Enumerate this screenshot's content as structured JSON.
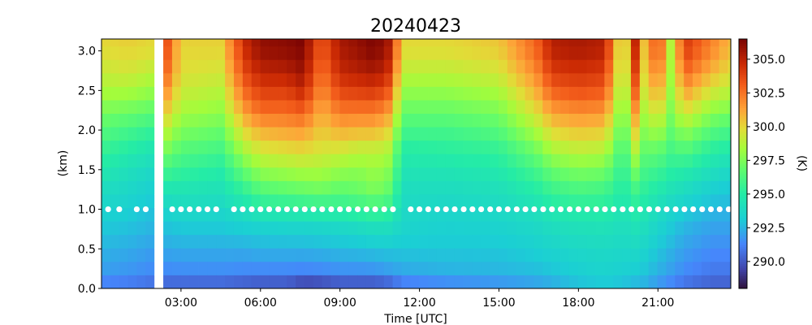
{
  "chart_data": {
    "type": "heatmap",
    "title": "20240423",
    "xlabel": "Time [UTC]",
    "ylabel": "(km)",
    "colorbar_label": "(K)",
    "colormap": "turbo",
    "xlim_hours": [
      0.0,
      23.75
    ],
    "ylim_km": [
      0.0,
      3.15
    ],
    "x_tick_labels": [
      "03:00",
      "06:00",
      "09:00",
      "12:00",
      "15:00",
      "18:00",
      "21:00"
    ],
    "x_tick_hours": [
      3,
      6,
      9,
      12,
      15,
      18,
      21
    ],
    "y_ticks": [
      0.0,
      0.5,
      1.0,
      1.5,
      2.0,
      2.5,
      3.0
    ],
    "y_tick_labels": [
      "0.0",
      "0.5",
      "1.0",
      "1.5",
      "2.0",
      "2.5",
      "3.0"
    ],
    "clim_K": [
      288.0,
      306.5
    ],
    "cbar_ticks": [
      290.0,
      292.5,
      295.0,
      297.5,
      300.0,
      302.5,
      305.0
    ],
    "cbar_tick_labels": [
      "290.0",
      "292.5",
      "295.0",
      "297.5",
      "300.0",
      "302.5",
      "305.0"
    ],
    "profile_heights_km": [
      0.0,
      0.1,
      0.25,
      0.5,
      0.75,
      1.0,
      1.25,
      1.5,
      1.75,
      2.0,
      2.25,
      2.5,
      2.75,
      3.0,
      3.15
    ],
    "time_step_hours": 0.333,
    "missing_data_hours": [
      2.0,
      2.33
    ],
    "profiles": [
      {
        "t": 0.0,
        "K": [
          290.5,
          291.5,
          292.0,
          292.5,
          293.0,
          293.5,
          294.0,
          294.8,
          295.6,
          296.5,
          297.5,
          298.5,
          299.2,
          299.8,
          300.0
        ]
      },
      {
        "t": 1.0,
        "K": [
          290.3,
          291.3,
          291.8,
          292.3,
          292.8,
          293.3,
          293.7,
          294.2,
          295.0,
          296.0,
          297.2,
          298.5,
          299.5,
          300.0,
          300.3
        ]
      },
      {
        "t": 1.9,
        "K": [
          290.0,
          291.0,
          291.5,
          292.0,
          292.5,
          292.9,
          293.3,
          293.8,
          294.5,
          295.5,
          296.8,
          298.0,
          299.0,
          299.8,
          300.0
        ]
      },
      {
        "t": 2.4,
        "K": [
          289.5,
          290.8,
          291.5,
          292.2,
          292.8,
          293.5,
          294.5,
          296.0,
          297.5,
          299.0,
          300.5,
          302.0,
          303.2,
          303.8,
          304.0
        ]
      },
      {
        "t": 3.0,
        "K": [
          289.5,
          290.8,
          291.6,
          292.3,
          293.0,
          293.8,
          294.5,
          295.5,
          296.5,
          297.5,
          298.5,
          299.2,
          299.8,
          300.0,
          300.2
        ]
      },
      {
        "t": 4.5,
        "K": [
          289.5,
          290.8,
          291.6,
          292.3,
          293.0,
          293.7,
          294.3,
          295.0,
          296.0,
          297.0,
          298.0,
          298.8,
          299.5,
          300.0,
          300.2
        ]
      },
      {
        "t": 5.4,
        "K": [
          289.3,
          290.6,
          291.5,
          292.3,
          293.2,
          294.2,
          295.5,
          297.0,
          298.5,
          300.0,
          301.5,
          302.8,
          303.8,
          304.5,
          304.8
        ]
      },
      {
        "t": 6.0,
        "K": [
          289.0,
          290.5,
          291.5,
          292.5,
          293.3,
          294.8,
          296.5,
          298.0,
          299.5,
          301.0,
          302.8,
          304.0,
          305.0,
          305.8,
          306.0
        ]
      },
      {
        "t": 7.0,
        "K": [
          289.0,
          290.5,
          291.5,
          292.5,
          293.4,
          294.9,
          296.8,
          298.3,
          299.8,
          301.3,
          302.8,
          304.0,
          305.2,
          306.0,
          306.2
        ]
      },
      {
        "t": 7.6,
        "K": [
          288.5,
          290.0,
          291.4,
          292.5,
          293.4,
          295.0,
          297.0,
          298.5,
          300.0,
          301.5,
          303.2,
          304.8,
          305.8,
          306.3,
          306.5
        ]
      },
      {
        "t": 8.3,
        "K": [
          288.5,
          290.2,
          291.5,
          292.6,
          293.5,
          295.2,
          297.2,
          298.5,
          299.5,
          300.3,
          301.0,
          301.8,
          302.5,
          303.0,
          303.2
        ]
      },
      {
        "t": 9.0,
        "K": [
          289.0,
          290.5,
          291.7,
          292.7,
          293.6,
          295.2,
          296.8,
          298.0,
          299.5,
          301.0,
          302.5,
          303.8,
          304.8,
          305.3,
          305.5
        ]
      },
      {
        "t": 9.7,
        "K": [
          289.0,
          290.5,
          291.7,
          292.8,
          293.8,
          295.5,
          297.0,
          297.8,
          299.0,
          300.8,
          302.5,
          304.0,
          305.2,
          305.8,
          306.0
        ]
      },
      {
        "t": 10.3,
        "K": [
          289.0,
          290.5,
          291.8,
          292.9,
          294.0,
          295.8,
          297.5,
          298.2,
          299.0,
          300.8,
          302.5,
          304.2,
          305.5,
          306.3,
          306.5
        ]
      },
      {
        "t": 10.8,
        "K": [
          289.3,
          290.8,
          292.0,
          293.0,
          294.0,
          295.5,
          297.0,
          297.8,
          298.8,
          300.2,
          301.8,
          303.5,
          304.8,
          305.5,
          305.8
        ]
      },
      {
        "t": 11.4,
        "K": [
          290.0,
          291.5,
          292.3,
          293.0,
          293.5,
          293.8,
          294.0,
          294.5,
          295.0,
          296.0,
          297.0,
          298.0,
          299.0,
          299.8,
          300.0
        ]
      },
      {
        "t": 13.0,
        "K": [
          290.5,
          291.8,
          292.5,
          293.0,
          293.3,
          293.6,
          294.0,
          294.5,
          295.2,
          296.0,
          297.0,
          298.0,
          299.0,
          299.8,
          300.0
        ]
      },
      {
        "t": 15.0,
        "K": [
          291.0,
          292.0,
          292.6,
          293.0,
          293.4,
          293.8,
          294.2,
          294.8,
          295.5,
          296.5,
          297.5,
          298.5,
          299.5,
          300.2,
          300.5
        ]
      },
      {
        "t": 16.4,
        "K": [
          291.5,
          292.3,
          292.8,
          293.3,
          293.7,
          294.2,
          295.0,
          296.0,
          297.2,
          298.5,
          299.8,
          301.0,
          302.0,
          302.8,
          303.0
        ]
      },
      {
        "t": 17.0,
        "K": [
          292.0,
          292.5,
          293.0,
          293.5,
          294.0,
          294.7,
          295.8,
          297.0,
          298.5,
          300.0,
          301.5,
          303.0,
          304.2,
          305.0,
          305.2
        ]
      },
      {
        "t": 18.0,
        "K": [
          292.5,
          293.0,
          293.3,
          293.7,
          294.2,
          295.0,
          296.2,
          297.5,
          299.0,
          300.5,
          302.0,
          303.5,
          304.5,
          305.3,
          305.5
        ]
      },
      {
        "t": 19.0,
        "K": [
          292.8,
          293.2,
          293.5,
          293.8,
          294.3,
          295.0,
          296.0,
          297.3,
          298.8,
          300.3,
          301.8,
          303.2,
          304.2,
          305.0,
          305.2
        ]
      },
      {
        "t": 19.7,
        "K": [
          292.5,
          293.0,
          293.3,
          293.7,
          294.0,
          294.4,
          294.8,
          295.2,
          295.7,
          296.2,
          296.8,
          297.3,
          297.8,
          298.0,
          298.2
        ]
      },
      {
        "t": 20.1,
        "K": [
          292.2,
          292.8,
          293.3,
          293.8,
          294.3,
          295.0,
          296.0,
          297.5,
          299.0,
          300.5,
          302.0,
          303.5,
          304.5,
          305.2,
          305.5
        ]
      },
      {
        "t": 20.5,
        "K": [
          292.0,
          292.6,
          293.0,
          293.5,
          294.0,
          294.6,
          295.3,
          296.0,
          296.8,
          297.6,
          298.4,
          299.2,
          299.8,
          300.2,
          300.4
        ]
      },
      {
        "t": 21.0,
        "K": [
          291.5,
          292.0,
          292.5,
          293.0,
          293.5,
          294.0,
          294.8,
          295.8,
          297.0,
          298.5,
          300.0,
          301.5,
          302.8,
          303.8,
          304.0
        ]
      },
      {
        "t": 21.5,
        "K": [
          291.0,
          291.5,
          292.0,
          292.5,
          293.0,
          293.6,
          294.3,
          295.2,
          296.0,
          296.8,
          297.5,
          298.0,
          298.3,
          298.5,
          298.6
        ]
      },
      {
        "t": 22.0,
        "K": [
          290.5,
          291.0,
          291.5,
          292.0,
          292.5,
          293.2,
          294.0,
          295.0,
          296.5,
          298.0,
          299.8,
          301.5,
          303.0,
          304.0,
          304.3
        ]
      },
      {
        "t": 23.0,
        "K": [
          290.0,
          290.5,
          291.0,
          291.5,
          292.0,
          292.6,
          293.3,
          294.2,
          295.2,
          296.5,
          298.0,
          299.5,
          301.0,
          302.0,
          302.3
        ]
      },
      {
        "t": 23.75,
        "K": [
          290.0,
          290.5,
          291.0,
          291.5,
          292.0,
          292.5,
          293.0,
          293.8,
          294.8,
          296.0,
          297.5,
          298.8,
          299.8,
          300.5,
          300.8
        ]
      }
    ],
    "overlay_points": {
      "height_km": 1.0,
      "color": "#ffffff",
      "hours": [
        0.25,
        0.67,
        1.33,
        1.67,
        2.67,
        3.0,
        3.33,
        3.67,
        4.0,
        4.33,
        5.0,
        5.33,
        5.67,
        6.0,
        6.33,
        6.67,
        7.0,
        7.33,
        7.67,
        8.0,
        8.33,
        8.67,
        9.0,
        9.33,
        9.67,
        10.0,
        10.33,
        10.67,
        11.0,
        11.67,
        12.0,
        12.33,
        12.67,
        13.0,
        13.33,
        13.67,
        14.0,
        14.33,
        14.67,
        15.0,
        15.33,
        15.67,
        16.0,
        16.33,
        16.67,
        17.0,
        17.33,
        17.67,
        18.0,
        18.33,
        18.67,
        19.0,
        19.33,
        19.67,
        20.0,
        20.33,
        20.67,
        21.0,
        21.33,
        21.67,
        22.0,
        22.33,
        22.67,
        23.0,
        23.33,
        23.67
      ]
    }
  }
}
